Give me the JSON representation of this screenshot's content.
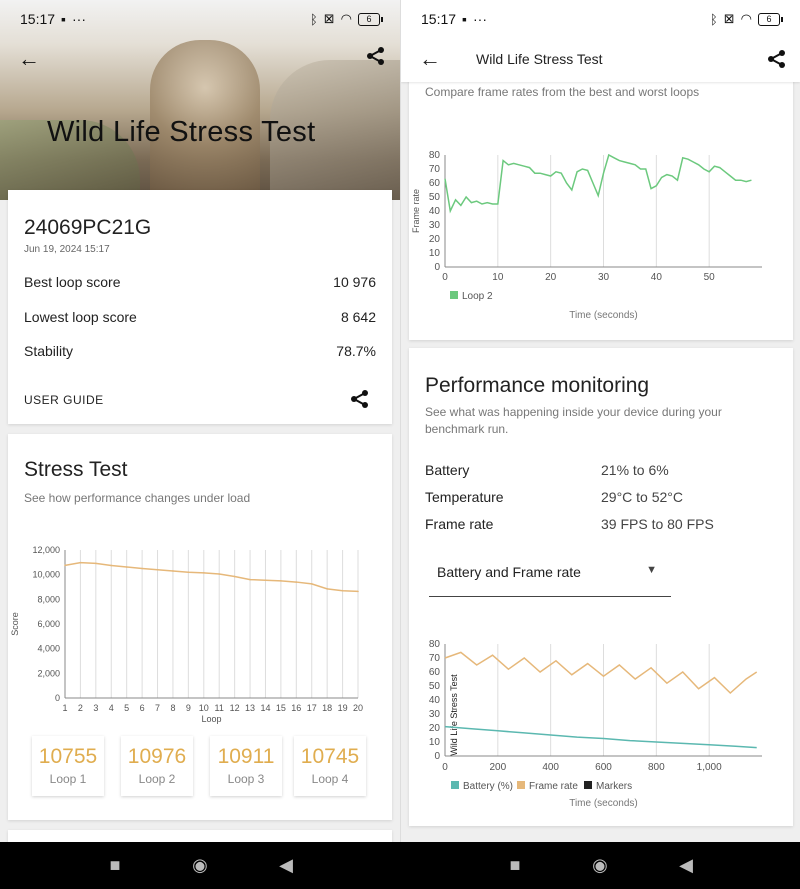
{
  "status": {
    "time": "15:17",
    "battery": "6"
  },
  "left": {
    "hero_title": "Wild Life Stress Test",
    "device": {
      "name": "24069PC21G",
      "date": "Jun 19, 2024 15:17"
    },
    "rows": [
      {
        "label": "Best loop score",
        "value": "10 976"
      },
      {
        "label": "Lowest loop score",
        "value": "8 642"
      },
      {
        "label": "Stability",
        "value": "78.7%"
      }
    ],
    "user_guide": "USER GUIDE",
    "stress": {
      "title": "Stress Test",
      "subtitle": "See how performance changes under load"
    },
    "loops": [
      {
        "value": "10755",
        "label": "Loop 1"
      },
      {
        "value": "10976",
        "label": "Loop 2"
      },
      {
        "value": "10911",
        "label": "Loop 3"
      },
      {
        "value": "10745",
        "label": "Loop 4"
      }
    ]
  },
  "right": {
    "header_title": "Wild Life Stress Test",
    "compare_subtitle": "Compare frame rates from the best and worst loops",
    "perf": {
      "title": "Performance monitoring",
      "subtitle": "See what was happening inside your device during your benchmark run.",
      "rows": [
        {
          "label": "Battery",
          "value": "21% to 6%"
        },
        {
          "label": "Temperature",
          "value": "29°C to 52°C"
        },
        {
          "label": "Frame rate",
          "value": "39 FPS to 80 FPS"
        }
      ],
      "dropdown": "Battery and Frame rate"
    }
  },
  "colors": {
    "accent": "#e0ad4f",
    "green": "#6cc97e",
    "teal": "#5bb8b0",
    "line": "#e6b87a"
  },
  "chart_data": [
    {
      "type": "line",
      "title": "",
      "xlabel": "Loop",
      "ylabel": "Score",
      "ylim": [
        0,
        12000
      ],
      "x": [
        1,
        2,
        3,
        4,
        5,
        6,
        7,
        8,
        9,
        10,
        11,
        12,
        13,
        14,
        15,
        16,
        17,
        18,
        19,
        20
      ],
      "xticks": [
        "1",
        "2",
        "3",
        "4",
        "5",
        "6",
        "7",
        "8",
        "9",
        "10",
        "11",
        "12",
        "13",
        "14",
        "15",
        "16",
        "17",
        "18",
        "19",
        "20"
      ],
      "yticks": [
        "0",
        "2,000",
        "4,000",
        "6,000",
        "8,000",
        "10,000",
        "12,000"
      ],
      "series": [
        {
          "values": [
            10755,
            10976,
            10911,
            10745,
            10620,
            10500,
            10400,
            10300,
            10200,
            10150,
            10050,
            9850,
            9600,
            9550,
            9500,
            9400,
            9250,
            8850,
            8700,
            8642
          ]
        }
      ]
    },
    {
      "type": "line",
      "xlabel": "Time (seconds)",
      "ylabel": "Frame rate",
      "ylim": [
        0,
        80
      ],
      "xlim": [
        0,
        60
      ],
      "xticks": [
        "0",
        "10",
        "20",
        "30",
        "40",
        "50"
      ],
      "yticks": [
        "0",
        "10",
        "20",
        "30",
        "40",
        "50",
        "60",
        "70",
        "80"
      ],
      "series": [
        {
          "name": "Loop 2",
          "x": [
            0,
            1,
            2,
            3,
            4,
            5,
            6,
            7,
            8,
            9,
            10,
            11,
            12,
            13,
            14,
            15,
            16,
            17,
            18,
            19,
            20,
            21,
            22,
            23,
            24,
            25,
            26,
            27,
            28,
            29,
            30,
            31,
            32,
            33,
            34,
            35,
            36,
            37,
            38,
            39,
            40,
            41,
            42,
            43,
            44,
            45,
            46,
            47,
            48,
            49,
            50,
            51,
            52,
            53,
            54,
            55,
            56,
            57,
            58
          ],
          "values": [
            63,
            40,
            48,
            44,
            50,
            46,
            47,
            45,
            46,
            45,
            45,
            76,
            73,
            74,
            73,
            72,
            71,
            67,
            67,
            66,
            65,
            68,
            67,
            60,
            55,
            68,
            70,
            69,
            60,
            51,
            67,
            80,
            78,
            76,
            75,
            74,
            73,
            70,
            70,
            56,
            58,
            64,
            66,
            65,
            62,
            78,
            77,
            75,
            73,
            70,
            68,
            72,
            71,
            68,
            65,
            62,
            62,
            61,
            62
          ]
        }
      ]
    },
    {
      "type": "line",
      "xlabel": "Time (seconds)",
      "ylabel": "Wild Life Stress Test",
      "ylim": [
        0,
        80
      ],
      "xlim": [
        0,
        1200
      ],
      "xticks": [
        "0",
        "200",
        "400",
        "600",
        "800",
        "1,000"
      ],
      "yticks": [
        "0",
        "10",
        "20",
        "30",
        "40",
        "50",
        "60",
        "70",
        "80"
      ],
      "legend": [
        "Battery (%)",
        "Frame rate",
        "Markers"
      ],
      "series": [
        {
          "name": "Battery (%)",
          "x": [
            0,
            100,
            200,
            300,
            400,
            500,
            600,
            700,
            800,
            900,
            1000,
            1100,
            1180
          ],
          "values": [
            21,
            19.5,
            18,
            16.5,
            15,
            13.5,
            12.5,
            11,
            10,
            9,
            8,
            7,
            6
          ]
        },
        {
          "name": "Frame rate",
          "x": [
            0,
            60,
            120,
            180,
            240,
            300,
            360,
            420,
            480,
            540,
            600,
            660,
            720,
            780,
            840,
            900,
            960,
            1020,
            1080,
            1140,
            1180
          ],
          "values": [
            70,
            74,
            65,
            72,
            62,
            70,
            60,
            68,
            58,
            66,
            57,
            65,
            55,
            63,
            52,
            60,
            48,
            56,
            45,
            55,
            60
          ]
        }
      ]
    }
  ]
}
